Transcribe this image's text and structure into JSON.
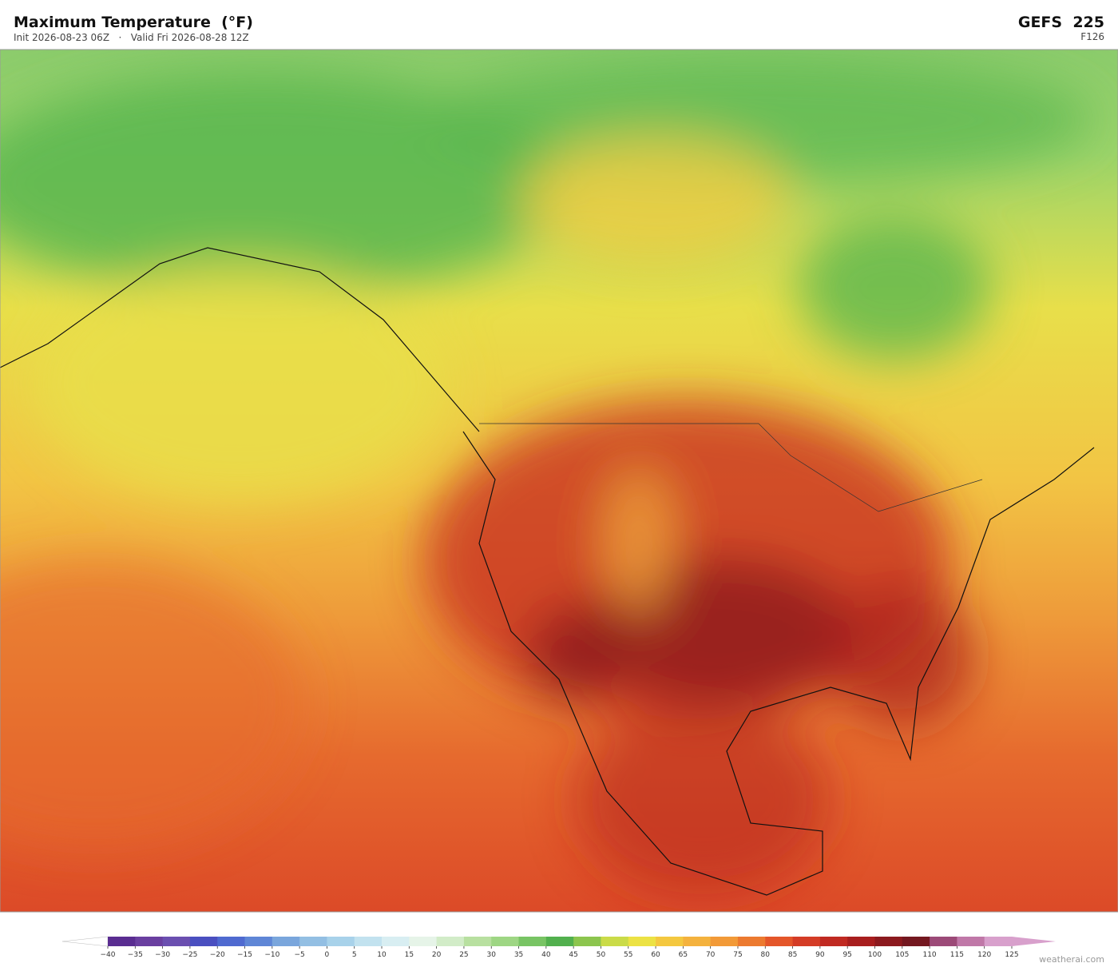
{
  "header": {
    "title": "Maximum Temperature  (°F)",
    "subtitle": "Init 2026-08-23 06Z   ·   Valid Fri 2026-08-28 12Z",
    "model": "GEFS  225",
    "forecast_hour": "F126"
  },
  "colorbar": {
    "ticks": [
      {
        "value": -40,
        "label": "−40"
      },
      {
        "value": -35,
        "label": "−35"
      },
      {
        "value": -30,
        "label": "−30"
      },
      {
        "value": -25,
        "label": "−25"
      },
      {
        "value": -20,
        "label": "−20"
      },
      {
        "value": -15,
        "label": "−15"
      },
      {
        "value": -10,
        "label": "−10"
      },
      {
        "value": -5,
        "label": "−5"
      },
      0,
      5,
      10,
      15,
      20,
      25,
      30,
      35,
      40,
      45,
      50,
      55,
      60,
      65,
      70,
      75,
      80,
      85,
      90,
      95,
      100,
      105,
      110,
      115,
      120,
      125
    ],
    "colors": [
      "#5a2d91",
      "#6a3fa0",
      "#6b4fb0",
      "#4a4fc0",
      "#4f6ad0",
      "#5f86d6",
      "#7aa6dc",
      "#93bfe3",
      "#a8d2ea",
      "#c2e2ef",
      "#d8eef2",
      "#e6f4e8",
      "#d2ecc8",
      "#b8e0a0",
      "#9ed684",
      "#78c464",
      "#52b04e",
      "#8cc54e",
      "#cadb48",
      "#ece244",
      "#f4c840",
      "#f4b23e",
      "#f29a38",
      "#ec7a30",
      "#e4562a",
      "#d43c26",
      "#c02a22",
      "#a81e1e",
      "#8c1a1e",
      "#741820",
      "#9c4a78",
      "#c078a8",
      "#d8a0cc"
    ],
    "under_color": "#ffffff",
    "over_color": "#d8a0cc"
  },
  "watermark": "weatherai.com"
}
